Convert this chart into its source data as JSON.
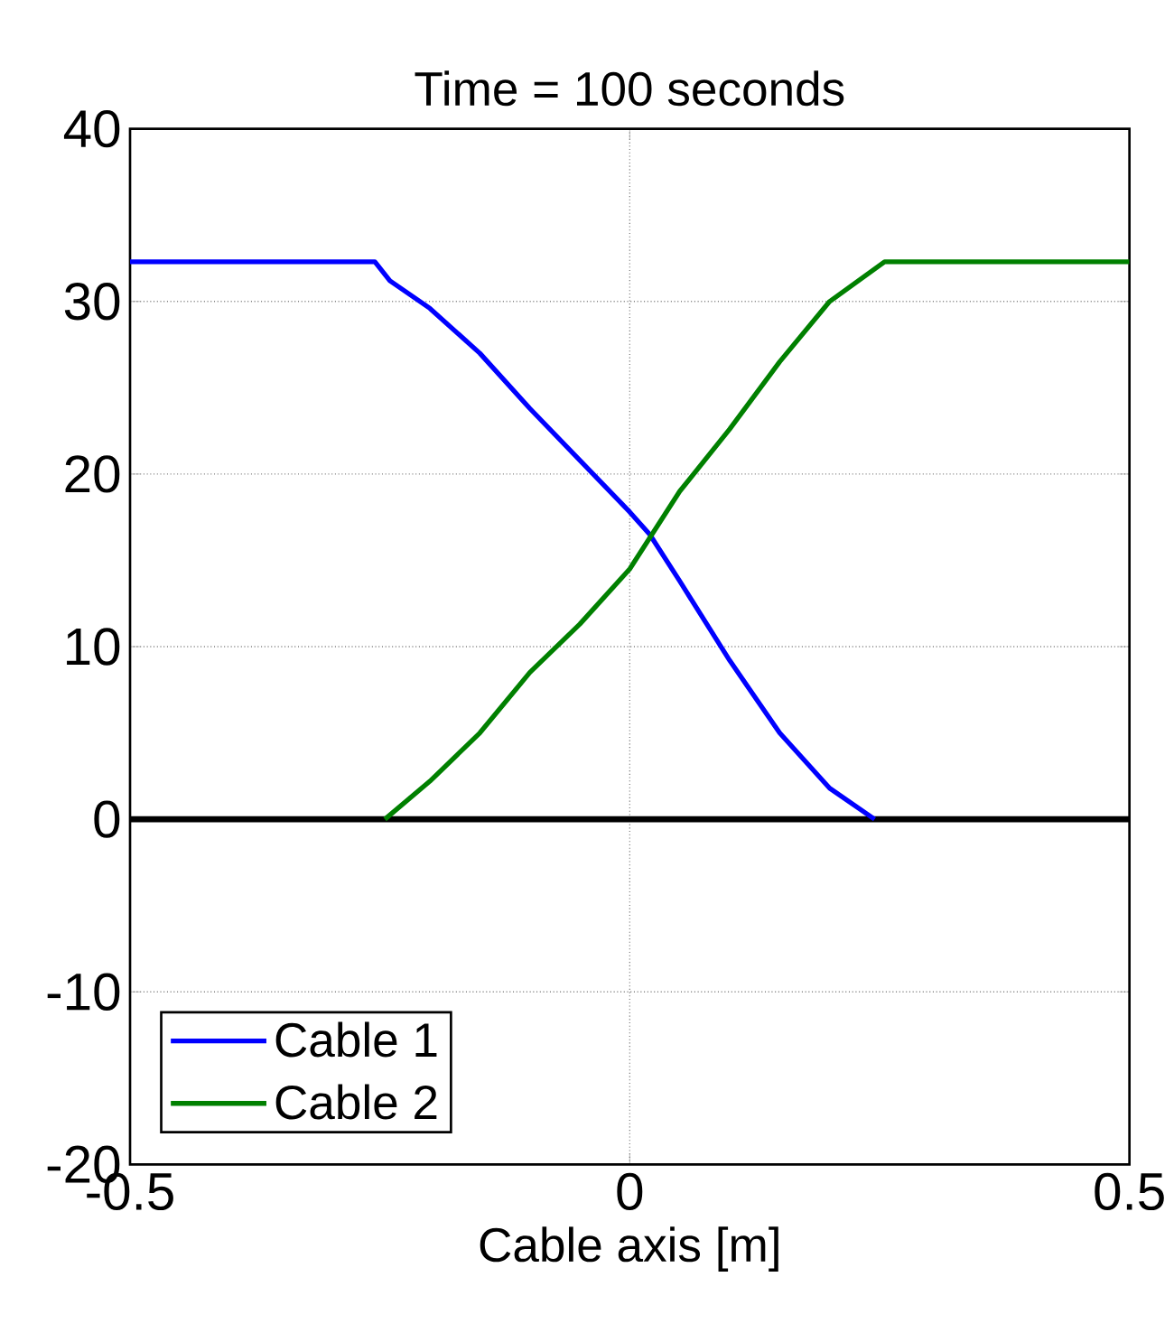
{
  "chart_data": {
    "type": "line",
    "title": "Time = 100 seconds",
    "xlabel": "Cable axis [m]",
    "xlim": [
      -0.5,
      0.5
    ],
    "xticks": [
      -0.5,
      0,
      0.5
    ],
    "ylim": [
      -20,
      40
    ],
    "yticks": [
      -20,
      -10,
      0,
      10,
      20,
      30,
      40
    ],
    "grid": true,
    "legend": "bottom left",
    "ref_lines": [
      {
        "axis": "y",
        "value": 0,
        "color": "#000000"
      }
    ],
    "series": [
      {
        "name": "Cable 1",
        "color": "#0000ff",
        "x": [
          -0.5,
          -0.255,
          -0.24,
          -0.2,
          -0.15,
          -0.1,
          -0.05,
          0,
          0.02,
          0.05,
          0.1,
          0.15,
          0.2,
          0.245
        ],
        "values": [
          32.3,
          32.3,
          31.2,
          29.6,
          27,
          23.8,
          20.8,
          17.8,
          16.5,
          13.8,
          9.2,
          5,
          1.8,
          0
        ]
      },
      {
        "name": "Cable 2",
        "color": "#008000",
        "x": [
          -0.245,
          -0.2,
          -0.15,
          -0.1,
          -0.05,
          0,
          0.05,
          0.1,
          0.15,
          0.2,
          0.255,
          0.5
        ],
        "values": [
          0,
          2.2,
          5,
          8.5,
          11.3,
          14.5,
          19,
          22.6,
          26.5,
          30,
          32.3,
          32.3
        ]
      }
    ]
  }
}
